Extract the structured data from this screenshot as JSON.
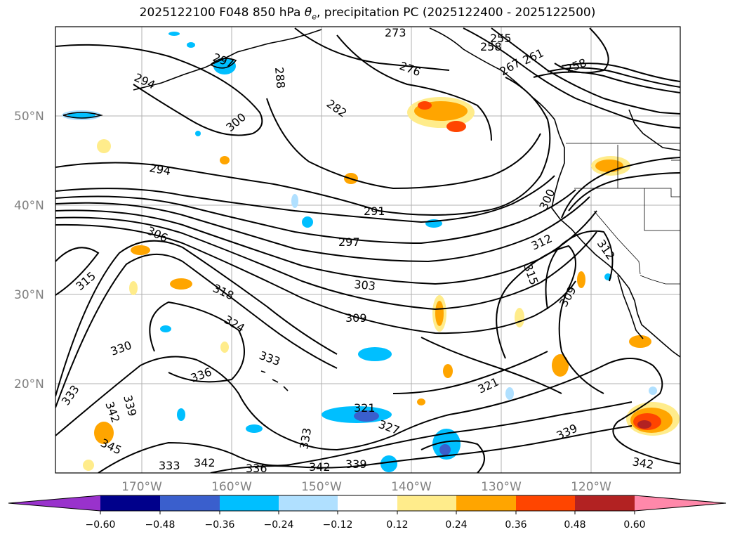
{
  "title": {
    "run": "2025122100 F048 850 hPa",
    "symbol": "θ",
    "subscript": "e",
    "rest": ", precipitation PC (2025122400 - 2025122500)"
  },
  "latitudes": [
    "50°N",
    "40°N",
    "30°N",
    "20°N"
  ],
  "longitudes": [
    "170°W",
    "160°W",
    "150°W",
    "140°W",
    "130°W",
    "120°W"
  ],
  "contour_labels": [
    "273",
    "255",
    "258",
    "261",
    "267",
    "258",
    "276",
    "282",
    "288",
    "294",
    "297",
    "300",
    "294",
    "291",
    "297",
    "306",
    "303",
    "309",
    "312",
    "315",
    "312",
    "309",
    "318",
    "324",
    "315",
    "330",
    "333",
    "336",
    "321",
    "321",
    "327",
    "333",
    "339",
    "339",
    "342",
    "345",
    "333",
    "342",
    "336",
    "342",
    "339",
    "342",
    "333",
    "300"
  ],
  "colorbar": {
    "ticks": [
      "−0.60",
      "−0.48",
      "−0.36",
      "−0.24",
      "−0.12",
      "0.12",
      "0.24",
      "0.36",
      "0.48",
      "0.60"
    ],
    "colors": [
      "#9932cc",
      "#00008b",
      "#3a5fcd",
      "#00bfff",
      "#b0e0ff",
      "#ffffff",
      "#ffec8b",
      "#ffa500",
      "#ff4500",
      "#b22222",
      "#ff88aa"
    ]
  }
}
